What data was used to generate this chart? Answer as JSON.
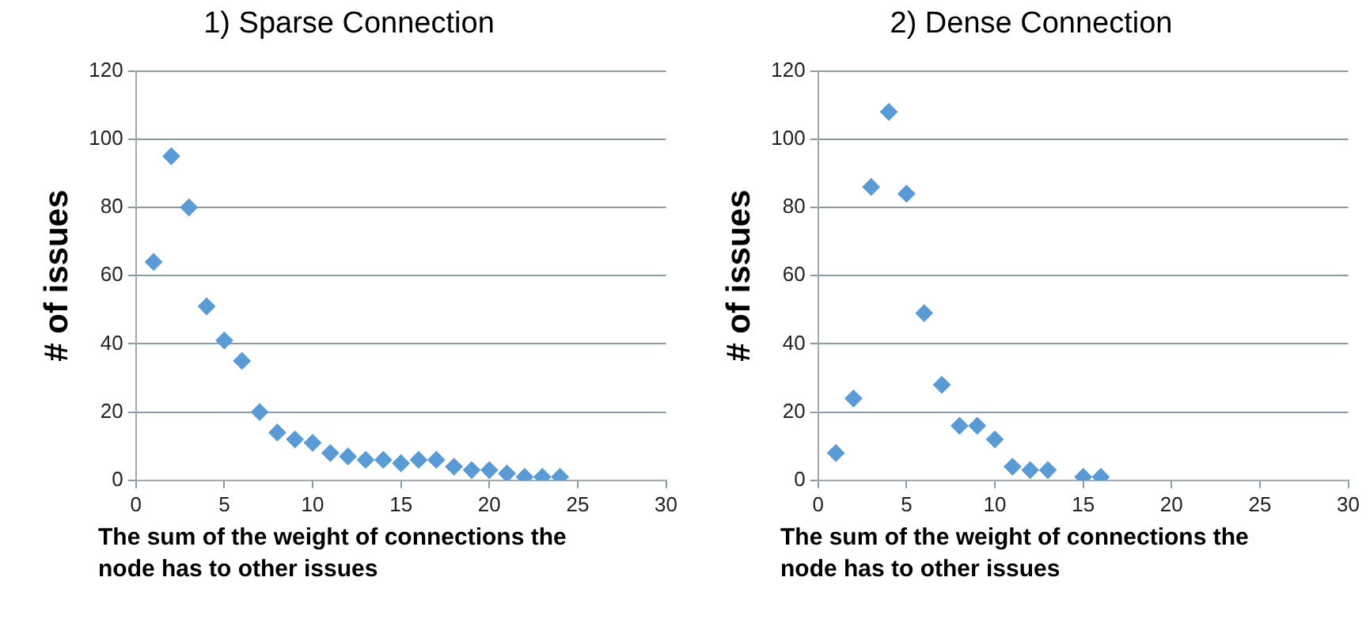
{
  "chart_data": [
    {
      "type": "scatter",
      "title": "1) Sparse Connection",
      "xlabel": "The sum of the weight of connections the node has to other issues",
      "ylabel": "# of issues",
      "marker": "diamond",
      "grid": "y",
      "legend": false,
      "xlim": [
        0,
        30
      ],
      "xticks": [
        0,
        5,
        10,
        15,
        20,
        25,
        30
      ],
      "ylim": [
        0,
        120
      ],
      "yticks": [
        0,
        20,
        40,
        60,
        80,
        100,
        120
      ],
      "series": [
        {
          "color": "#5b9bd5",
          "x": [
            1,
            2,
            3,
            4,
            5,
            6,
            7,
            8,
            9,
            10,
            11,
            12,
            13,
            14,
            15,
            16,
            17,
            18,
            19,
            20,
            21,
            22,
            23,
            24
          ],
          "values": [
            64,
            95,
            80,
            51,
            41,
            35,
            20,
            14,
            12,
            11,
            8,
            7,
            6,
            6,
            5,
            6,
            6,
            4,
            3,
            3,
            2,
            1,
            1,
            1
          ]
        }
      ]
    },
    {
      "type": "scatter",
      "title": "2) Dense Connection",
      "xlabel": "The sum of the weight of connections the node has to other issues",
      "ylabel": "# of issues",
      "marker": "diamond",
      "grid": "y",
      "legend": false,
      "xlim": [
        0,
        30
      ],
      "xticks": [
        0,
        5,
        10,
        15,
        20,
        25,
        30
      ],
      "ylim": [
        0,
        120
      ],
      "yticks": [
        0,
        20,
        40,
        60,
        80,
        100,
        120
      ],
      "series": [
        {
          "color": "#5b9bd5",
          "x": [
            1,
            2,
            3,
            4,
            5,
            6,
            7,
            8,
            9,
            10,
            11,
            12,
            13,
            15,
            16
          ],
          "values": [
            8,
            24,
            86,
            108,
            84,
            49,
            28,
            16,
            16,
            12,
            4,
            3,
            3,
            1,
            1
          ]
        }
      ]
    }
  ]
}
